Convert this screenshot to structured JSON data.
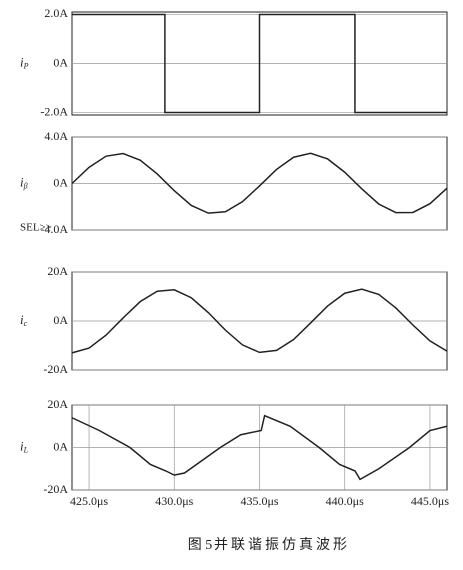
{
  "chart_data": [
    {
      "type": "line",
      "ylabel": "i",
      "ylabel_sub": "P",
      "color": "#222222",
      "xlim": [
        424,
        446
      ],
      "ylim": [
        -2.1,
        2.1
      ],
      "yticks": [
        {
          "value": 2,
          "label": "2.0A"
        },
        {
          "value": 0,
          "label": "0A"
        },
        {
          "value": -2,
          "label": "-2.0A"
        }
      ],
      "x": [
        424,
        429.45,
        429.45,
        435.0,
        435.0,
        440.6,
        440.6,
        446
      ],
      "values": [
        2,
        2,
        -2,
        -2,
        2,
        2,
        -2,
        -2
      ]
    },
    {
      "type": "line",
      "ylabel": "i",
      "ylabel_sub": "β",
      "color": "#222222",
      "annotation": "SEL>>",
      "xlim": [
        424,
        446
      ],
      "ylim": [
        -4,
        4
      ],
      "yticks": [
        {
          "value": 4,
          "label": "4.0A"
        },
        {
          "value": 0,
          "label": "0A"
        },
        {
          "value": -4,
          "label": "-4.0A"
        }
      ],
      "x": [
        424,
        425,
        426,
        427,
        428,
        429,
        430,
        431,
        432,
        433,
        434,
        435,
        436,
        437,
        438,
        439,
        440,
        441,
        442,
        443,
        444,
        445,
        446
      ],
      "values": [
        0,
        1.39,
        2.35,
        2.58,
        2.01,
        0.82,
        -0.62,
        -1.89,
        -2.55,
        -2.43,
        -1.56,
        -0.21,
        1.21,
        2.26,
        2.6,
        2.11,
        0.97,
        -0.46,
        -1.77,
        -2.5,
        -2.49,
        -1.74,
        -0.4
      ]
    },
    {
      "type": "line",
      "ylabel": "i",
      "ylabel_sub": "c",
      "color": "#222222",
      "xlim": [
        424,
        446
      ],
      "ylim": [
        -20,
        20
      ],
      "yticks": [
        {
          "value": 20,
          "label": "20A"
        },
        {
          "value": 0,
          "label": "0A"
        },
        {
          "value": -20,
          "label": "-20A"
        }
      ],
      "x": [
        424,
        425,
        426,
        427,
        428,
        429,
        430,
        431,
        432,
        433,
        434,
        435,
        436,
        437,
        438,
        439,
        440,
        441,
        442,
        443,
        444,
        445,
        446
      ],
      "values": [
        -13,
        -11.04,
        -5.76,
        1.26,
        7.9,
        12.16,
        12.75,
        9.49,
        3.41,
        -3.73,
        -9.76,
        -12.82,
        -11.99,
        -7.55,
        -0.79,
        6.16,
        11.34,
        12.99,
        10.83,
        5.33,
        -1.64,
        -8.11,
        -12.29
      ]
    },
    {
      "type": "line",
      "ylabel": "i",
      "ylabel_sub": "L",
      "color": "#222222",
      "xlim": [
        424,
        446
      ],
      "ylim": [
        -20,
        20
      ],
      "yticks": [
        {
          "value": 20,
          "label": "20A"
        },
        {
          "value": 0,
          "label": "0A"
        },
        {
          "value": -20,
          "label": "-20A"
        }
      ],
      "xticks": [
        {
          "value": 425,
          "label": "425.0μs"
        },
        {
          "value": 430,
          "label": "430.0μs"
        },
        {
          "value": 435,
          "label": "435.0μs"
        },
        {
          "value": 440,
          "label": "440.0μs"
        },
        {
          "value": 445,
          "label": "445.0μs"
        }
      ],
      "x": [
        424,
        425.6,
        427.4,
        428.6,
        429.5,
        430,
        430.6,
        432.7,
        433.9,
        435.1,
        435.3,
        436.8,
        438.5,
        439.7,
        440.6,
        440.9,
        442,
        443.8,
        445,
        446
      ],
      "values": [
        14,
        8,
        0,
        -8,
        -11,
        -13,
        -12,
        0,
        6,
        8,
        15,
        10,
        0,
        -8,
        -11,
        -15,
        -10,
        0,
        8,
        10
      ]
    }
  ],
  "caption": {
    "figure": "图 5",
    "text": "并联谐振仿真波形"
  }
}
